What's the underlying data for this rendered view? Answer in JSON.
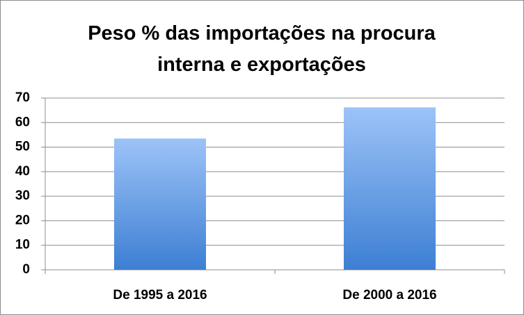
{
  "chart_data": {
    "type": "bar",
    "title": "Peso % das importações na procura interna e exportações",
    "categories": [
      "De 1995 a 2016",
      "De 2000 a 2016"
    ],
    "values": [
      53.5,
      66.2
    ],
    "ylim": [
      0,
      70
    ],
    "yticks": [
      0,
      10,
      20,
      30,
      40,
      50,
      60,
      70
    ],
    "grid": true
  }
}
